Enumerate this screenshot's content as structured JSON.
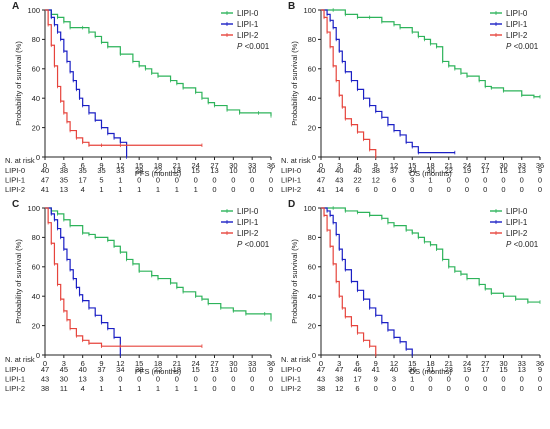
{
  "chart_data": [
    {
      "type": "line",
      "panel": "A",
      "xlabel": "PFS (months)",
      "ylabel": "Probability of survival (%)",
      "xlim": [
        0,
        36
      ],
      "ylim": [
        0,
        100
      ],
      "xticks": [
        0,
        3,
        6,
        9,
        12,
        15,
        18,
        21,
        24,
        27,
        30,
        33,
        36
      ],
      "yticks": [
        0,
        20,
        40,
        60,
        80,
        100
      ],
      "p_label": "P <0.001",
      "legend_position": "top-right",
      "series": [
        {
          "name": "LIPI-0",
          "color": "#2db35a",
          "x": [
            0,
            1,
            2,
            3,
            4,
            6,
            7,
            8,
            9,
            10,
            12,
            14,
            15,
            16,
            17,
            18,
            20,
            21,
            22,
            24,
            25,
            26,
            27,
            29,
            31,
            34,
            36
          ],
          "y": [
            100,
            97,
            95,
            92,
            88,
            88,
            85,
            82,
            78,
            75,
            70,
            65,
            62,
            60,
            57,
            55,
            52,
            50,
            47,
            44,
            40,
            37,
            35,
            32,
            30,
            30,
            28
          ]
        },
        {
          "name": "LIPI-1",
          "color": "#1a1fc4",
          "x": [
            0,
            1,
            1.5,
            2,
            2.5,
            3,
            3.5,
            4,
            4.5,
            5,
            5.5,
            6,
            7,
            8,
            9,
            10,
            11,
            12,
            13
          ],
          "y": [
            100,
            95,
            90,
            85,
            80,
            72,
            65,
            58,
            52,
            46,
            40,
            35,
            30,
            25,
            20,
            16,
            13,
            10,
            0
          ]
        },
        {
          "name": "LIPI-2",
          "color": "#e6443c",
          "x": [
            0,
            0.5,
            1,
            1.5,
            2,
            2.5,
            3,
            3.5,
            4,
            5,
            6,
            7,
            9,
            12,
            25
          ],
          "y": [
            100,
            90,
            76,
            62,
            48,
            38,
            30,
            24,
            18,
            13,
            10,
            8,
            8,
            8,
            8
          ]
        }
      ],
      "risk_table": {
        "label": "N. at risk",
        "rows": [
          {
            "name": "LIPI-0",
            "values": [
              "40",
              "38",
              "35",
              "35",
              "33",
              "28",
              "22",
              "18",
              "15",
              "13",
              "10",
              "10",
              "7"
            ]
          },
          {
            "name": "LIPI-1",
            "values": [
              "47",
              "35",
              "17",
              "5",
              "1",
              "0",
              "0",
              "0",
              "0",
              "0",
              "0",
              "0",
              "0"
            ]
          },
          {
            "name": "LIPI-2",
            "values": [
              "41",
              "13",
              "4",
              "1",
              "1",
              "1",
              "1",
              "1",
              "1",
              "0",
              "0",
              "0",
              "0"
            ]
          }
        ]
      }
    },
    {
      "type": "line",
      "panel": "B",
      "xlabel": "OS (months)",
      "ylabel": "Probability of survival (%)",
      "xlim": [
        0,
        36
      ],
      "ylim": [
        0,
        100
      ],
      "xticks": [
        0,
        3,
        6,
        9,
        12,
        15,
        18,
        21,
        24,
        27,
        30,
        33,
        36
      ],
      "yticks": [
        0,
        20,
        40,
        60,
        80,
        100
      ],
      "p_label": "P <0.001",
      "legend_position": "top-right",
      "series": [
        {
          "name": "LIPI-0",
          "color": "#2db35a",
          "x": [
            0,
            2,
            4,
            6,
            8,
            10,
            12,
            13,
            15,
            16,
            17,
            18,
            19,
            20,
            21,
            22,
            23,
            24,
            26,
            27,
            28,
            30,
            33,
            35,
            36
          ],
          "y": [
            100,
            100,
            97,
            95,
            95,
            92,
            90,
            88,
            85,
            82,
            80,
            77,
            75,
            65,
            62,
            60,
            57,
            55,
            52,
            48,
            47,
            45,
            42,
            41,
            41
          ]
        },
        {
          "name": "LIPI-1",
          "color": "#1a1fc4",
          "x": [
            0,
            1,
            1.5,
            2,
            2.5,
            3,
            3.5,
            4,
            5,
            6,
            7,
            8,
            9,
            10,
            11,
            12,
            13,
            14,
            15,
            16,
            22
          ],
          "y": [
            100,
            97,
            93,
            88,
            80,
            72,
            65,
            58,
            52,
            46,
            40,
            35,
            31,
            27,
            22,
            18,
            15,
            10,
            7,
            3,
            3
          ]
        },
        {
          "name": "LIPI-2",
          "color": "#e6443c",
          "x": [
            0,
            0.5,
            1,
            1.5,
            2,
            2.5,
            3,
            3.5,
            4,
            5,
            6,
            7,
            8,
            9
          ],
          "y": [
            100,
            95,
            85,
            75,
            62,
            52,
            42,
            34,
            26,
            22,
            17,
            12,
            5,
            0
          ]
        }
      ],
      "risk_table": {
        "label": "N. at risk",
        "rows": [
          {
            "name": "LIPI-0",
            "values": [
              "40",
              "40",
              "40",
              "38",
              "37",
              "34",
              "30",
              "22",
              "19",
              "17",
              "15",
              "13",
              "9"
            ]
          },
          {
            "name": "LIPI-1",
            "values": [
              "47",
              "43",
              "22",
              "12",
              "6",
              "3",
              "1",
              "0",
              "0",
              "0",
              "0",
              "0",
              "0"
            ]
          },
          {
            "name": "LIPI-2",
            "values": [
              "41",
              "14",
              "6",
              "0",
              "0",
              "0",
              "0",
              "0",
              "0",
              "0",
              "0",
              "0",
              "0"
            ]
          }
        ]
      }
    },
    {
      "type": "line",
      "panel": "C",
      "xlabel": "PFS (months)",
      "ylabel": "Probability of survival (%)",
      "xlim": [
        0,
        36
      ],
      "ylim": [
        0,
        100
      ],
      "xticks": [
        0,
        3,
        6,
        9,
        12,
        15,
        18,
        21,
        24,
        27,
        30,
        33,
        36
      ],
      "yticks": [
        0,
        20,
        40,
        60,
        80,
        100
      ],
      "p_label": "P <0.001",
      "legend_position": "top-right",
      "series": [
        {
          "name": "LIPI-0",
          "color": "#2db35a",
          "x": [
            0,
            1,
            2,
            3,
            4,
            6,
            7,
            8,
            10,
            11,
            12,
            13,
            14,
            15,
            17,
            18,
            20,
            21,
            22,
            24,
            25,
            26,
            28,
            30,
            32,
            35,
            36
          ],
          "y": [
            100,
            98,
            96,
            92,
            88,
            83,
            82,
            80,
            78,
            74,
            70,
            65,
            62,
            57,
            54,
            52,
            49,
            46,
            43,
            40,
            38,
            35,
            32,
            30,
            28,
            28,
            24
          ]
        },
        {
          "name": "LIPI-1",
          "color": "#1a1fc4",
          "x": [
            0,
            1,
            1.5,
            2,
            2.5,
            3,
            3.5,
            4,
            4.5,
            5,
            5.5,
            6,
            7,
            8,
            9,
            10,
            11,
            12
          ],
          "y": [
            100,
            96,
            92,
            86,
            80,
            72,
            65,
            58,
            52,
            46,
            41,
            37,
            32,
            27,
            22,
            18,
            12,
            0
          ]
        },
        {
          "name": "LIPI-2",
          "color": "#e6443c",
          "x": [
            0,
            0.5,
            1,
            1.5,
            2,
            2.5,
            3,
            3.5,
            4,
            5,
            6,
            7,
            9,
            12,
            25
          ],
          "y": [
            100,
            90,
            76,
            62,
            48,
            38,
            30,
            24,
            18,
            13,
            10,
            8,
            6,
            6,
            6
          ]
        }
      ],
      "risk_table": {
        "label": "N. at risk",
        "rows": [
          {
            "name": "LIPI-0",
            "values": [
              "47",
              "45",
              "40",
              "37",
              "34",
              "28",
              "22",
              "18",
              "15",
              "13",
              "10",
              "10",
              "9"
            ]
          },
          {
            "name": "LIPI-1",
            "values": [
              "43",
              "30",
              "13",
              "3",
              "0",
              "0",
              "0",
              "0",
              "0",
              "0",
              "0",
              "0",
              "0"
            ]
          },
          {
            "name": "LIPI-2",
            "values": [
              "38",
              "11",
              "4",
              "1",
              "1",
              "1",
              "1",
              "1",
              "1",
              "0",
              "0",
              "0",
              "0"
            ]
          }
        ]
      }
    },
    {
      "type": "line",
      "panel": "D",
      "xlabel": "OS (months)",
      "ylabel": "Probability of survival (%)",
      "xlim": [
        0,
        36
      ],
      "ylim": [
        0,
        100
      ],
      "xticks": [
        0,
        3,
        6,
        9,
        12,
        15,
        18,
        21,
        24,
        27,
        30,
        33,
        36
      ],
      "yticks": [
        0,
        20,
        40,
        60,
        80,
        100
      ],
      "p_label": "P <0.001",
      "legend_position": "top-right",
      "series": [
        {
          "name": "LIPI-0",
          "color": "#2db35a",
          "x": [
            0,
            2,
            4,
            6,
            8,
            10,
            11,
            12,
            14,
            15,
            16,
            17,
            18,
            19,
            20,
            21,
            22,
            23,
            24,
            26,
            27,
            28,
            30,
            32,
            34,
            36
          ],
          "y": [
            100,
            100,
            98,
            97,
            95,
            93,
            90,
            88,
            85,
            83,
            80,
            77,
            75,
            72,
            65,
            60,
            57,
            55,
            52,
            48,
            45,
            42,
            40,
            38,
            36,
            36
          ]
        },
        {
          "name": "LIPI-1",
          "color": "#1a1fc4",
          "x": [
            0,
            1,
            1.5,
            2,
            2.5,
            3,
            3.5,
            4,
            5,
            6,
            7,
            8,
            9,
            10,
            11,
            12,
            13,
            14,
            15
          ],
          "y": [
            100,
            98,
            95,
            90,
            82,
            72,
            65,
            58,
            50,
            44,
            38,
            32,
            27,
            22,
            17,
            12,
            9,
            4,
            0
          ]
        },
        {
          "name": "LIPI-2",
          "color": "#e6443c",
          "x": [
            0,
            0.5,
            1,
            1.5,
            2,
            2.5,
            3,
            3.5,
            4,
            5,
            6,
            7,
            8,
            9
          ],
          "y": [
            100,
            95,
            85,
            74,
            62,
            50,
            40,
            32,
            26,
            20,
            15,
            10,
            6,
            0
          ]
        }
      ],
      "risk_table": {
        "label": "N. at risk",
        "rows": [
          {
            "name": "LIPI-0",
            "values": [
              "47",
              "47",
              "46",
              "41",
              "40",
              "36",
              "31",
              "23",
              "19",
              "17",
              "15",
              "13",
              "9"
            ]
          },
          {
            "name": "LIPI-1",
            "values": [
              "43",
              "38",
              "17",
              "9",
              "3",
              "1",
              "0",
              "0",
              "0",
              "0",
              "0",
              "0",
              "0"
            ]
          },
          {
            "name": "LIPI-2",
            "values": [
              "38",
              "12",
              "6",
              "0",
              "0",
              "0",
              "0",
              "0",
              "0",
              "0",
              "0",
              "0",
              "0"
            ]
          }
        ]
      }
    }
  ]
}
